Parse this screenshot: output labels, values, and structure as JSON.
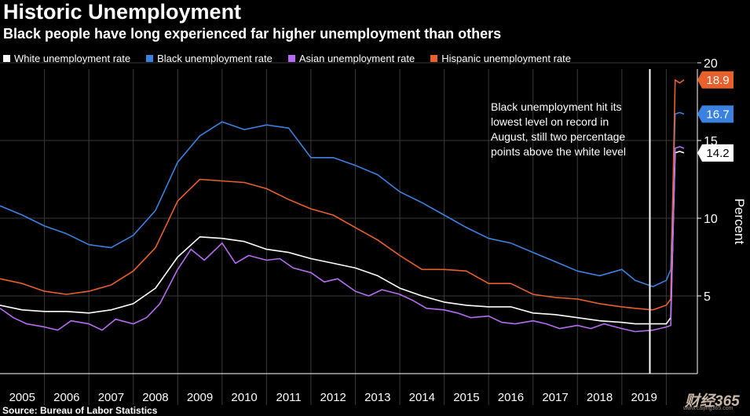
{
  "header": {
    "title": "Historic Unemployment",
    "subtitle": "Black people have long experienced far higher unemployment than others"
  },
  "legend": [
    {
      "label": "White unemployment rate",
      "color": "#ffffff"
    },
    {
      "label": "Black unemployment rate",
      "color": "#3b82e0"
    },
    {
      "label": "Asian unemployment rate",
      "color": "#b66cf0"
    },
    {
      "label": "Hispanic unemployment rate",
      "color": "#e8602c"
    }
  ],
  "annotation": {
    "lines": [
      "Black unemployment hit its",
      "lowest level on record in",
      "August, still two percentage",
      "points above the white level"
    ]
  },
  "source": "Source: Bureau of Labor Statistics",
  "watermark": {
    "logo": "财经365",
    "url": "www.caijing365.com"
  },
  "chart_data": {
    "type": "line",
    "title": "Historic Unemployment",
    "ylabel": "Percent",
    "ylim": [
      0,
      20
    ],
    "yticks": [
      5,
      10,
      15,
      20
    ],
    "xlabels": [
      "2005",
      "2006",
      "2007",
      "2008",
      "2009",
      "2010",
      "2011",
      "2012",
      "2013",
      "2014",
      "2015",
      "2016",
      "2017",
      "2018",
      "2019"
    ],
    "x_start": 2005,
    "x_end": 2020.7,
    "vline_at": 2019.63,
    "grid": true,
    "series": [
      {
        "name": "Black unemployment rate",
        "color": "#3b82e0",
        "end_label": "16.7",
        "x": [
          2005,
          2005.5,
          2006,
          2006.5,
          2007,
          2007.5,
          2008,
          2008.5,
          2009,
          2009.5,
          2010,
          2010.5,
          2011,
          2011.5,
          2012,
          2012.5,
          2013,
          2013.5,
          2014,
          2014.5,
          2015,
          2015.5,
          2016,
          2016.5,
          2017,
          2017.5,
          2018,
          2018.5,
          2019,
          2019.3,
          2019.7,
          2020,
          2020.1,
          2020.2,
          2020.3,
          2020.4
        ],
        "y": [
          10.8,
          10.2,
          9.5,
          9.0,
          8.3,
          8.1,
          8.9,
          10.5,
          13.6,
          15.3,
          16.2,
          15.7,
          16.0,
          15.8,
          13.9,
          13.9,
          13.4,
          12.8,
          11.7,
          11.0,
          10.2,
          9.4,
          8.7,
          8.4,
          7.8,
          7.2,
          6.6,
          6.3,
          6.7,
          6.0,
          5.6,
          6.0,
          6.7,
          16.7,
          16.8,
          16.7
        ]
      },
      {
        "name": "Hispanic unemployment rate",
        "color": "#e8602c",
        "end_label": "18.9",
        "x": [
          2005,
          2005.5,
          2006,
          2006.5,
          2007,
          2007.5,
          2008,
          2008.5,
          2009,
          2009.5,
          2010,
          2010.5,
          2011,
          2011.5,
          2012,
          2012.5,
          2013,
          2013.5,
          2014,
          2014.5,
          2015,
          2015.5,
          2016,
          2016.5,
          2017,
          2017.5,
          2018,
          2018.5,
          2019,
          2019.3,
          2019.7,
          2020,
          2020.1,
          2020.2,
          2020.3,
          2020.4
        ],
        "y": [
          6.1,
          5.8,
          5.3,
          5.1,
          5.3,
          5.7,
          6.6,
          8.1,
          11.1,
          12.5,
          12.4,
          12.3,
          11.9,
          11.2,
          10.6,
          10.2,
          9.4,
          8.6,
          7.6,
          6.7,
          6.7,
          6.6,
          5.8,
          5.8,
          5.1,
          4.9,
          4.8,
          4.5,
          4.3,
          4.2,
          4.1,
          4.4,
          4.8,
          18.9,
          18.7,
          18.9
        ]
      },
      {
        "name": "White unemployment rate",
        "color": "#ffffff",
        "end_label": "14.2",
        "x": [
          2005,
          2005.5,
          2006,
          2006.5,
          2007,
          2007.5,
          2008,
          2008.5,
          2009,
          2009.5,
          2010,
          2010.5,
          2011,
          2011.5,
          2012,
          2012.5,
          2013,
          2013.5,
          2014,
          2014.5,
          2015,
          2015.5,
          2016,
          2016.5,
          2017,
          2017.5,
          2018,
          2018.5,
          2019,
          2019.3,
          2019.7,
          2020,
          2020.1,
          2020.2,
          2020.3,
          2020.4
        ],
        "y": [
          4.4,
          4.1,
          4.0,
          4.0,
          3.9,
          4.1,
          4.5,
          5.5,
          7.5,
          8.8,
          8.7,
          8.5,
          8.0,
          7.8,
          7.4,
          7.1,
          6.8,
          6.3,
          5.5,
          5.0,
          4.6,
          4.4,
          4.3,
          4.3,
          3.9,
          3.8,
          3.6,
          3.4,
          3.3,
          3.2,
          3.2,
          3.2,
          3.6,
          14.2,
          14.3,
          14.2
        ]
      },
      {
        "name": "Asian unemployment rate",
        "color": "#b66cf0",
        "end_label": "",
        "x": [
          2005,
          2005.3,
          2005.6,
          2006,
          2006.3,
          2006.6,
          2007,
          2007.3,
          2007.6,
          2008,
          2008.3,
          2008.6,
          2009,
          2009.3,
          2009.6,
          2010,
          2010.3,
          2010.6,
          2011,
          2011.3,
          2011.6,
          2012,
          2012.3,
          2012.6,
          2013,
          2013.3,
          2013.6,
          2014,
          2014.3,
          2014.6,
          2015,
          2015.3,
          2015.6,
          2016,
          2016.3,
          2016.6,
          2017,
          2017.3,
          2017.6,
          2018,
          2018.3,
          2018.6,
          2019,
          2019.3,
          2019.7,
          2020,
          2020.1,
          2020.2,
          2020.3,
          2020.4
        ],
        "y": [
          4.2,
          3.6,
          3.2,
          3.0,
          2.8,
          3.4,
          3.2,
          2.8,
          3.5,
          3.2,
          3.6,
          4.5,
          6.7,
          8.0,
          7.3,
          8.4,
          7.1,
          7.6,
          7.3,
          7.4,
          6.8,
          6.5,
          5.9,
          6.1,
          5.3,
          5.0,
          5.4,
          5.1,
          4.7,
          4.2,
          4.1,
          3.9,
          3.6,
          3.7,
          3.3,
          3.2,
          3.4,
          3.2,
          2.9,
          3.1,
          2.9,
          3.2,
          2.9,
          2.7,
          2.8,
          3.0,
          3.1,
          14.5,
          14.6,
          14.5
        ]
      }
    ]
  }
}
